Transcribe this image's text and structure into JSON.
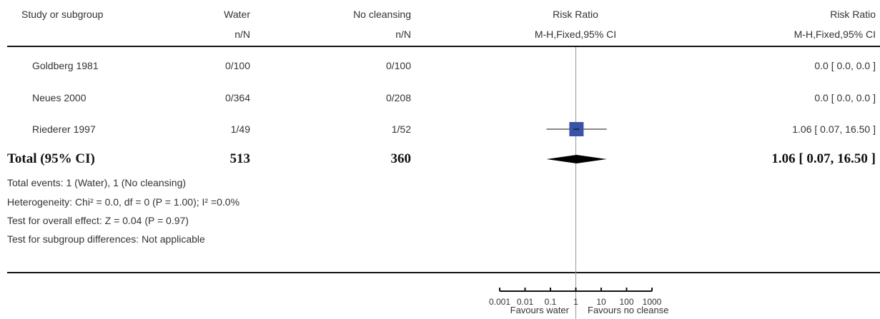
{
  "header": {
    "col1": "Study or subgroup",
    "col2": "Water",
    "col2_sub": "n/N",
    "col3": "No cleansing",
    "col3_sub": "n/N",
    "col4": "Risk Ratio",
    "col4_sub": "M-H,Fixed,95% CI",
    "col5": "Risk Ratio",
    "col5_sub": "M-H,Fixed,95% CI"
  },
  "studies": [
    {
      "name": "Goldberg 1981",
      "water": "0/100",
      "no_cleansing": "0/100",
      "rr_text": "0.0 [ 0.0, 0.0 ]"
    },
    {
      "name": "Neues 2000",
      "water": "0/364",
      "no_cleansing": "0/208",
      "rr_text": "0.0 [ 0.0, 0.0 ]"
    },
    {
      "name": "Riederer 1997",
      "water": "1/49",
      "no_cleansing": "1/52",
      "rr_text": "1.06 [ 0.07, 16.50 ]"
    }
  ],
  "total": {
    "label": "Total (95% CI)",
    "water": "513",
    "no_cleansing": "360",
    "rr_text": "1.06 [ 0.07, 16.50 ]"
  },
  "footnotes": {
    "events": "Total events: 1 (Water), 1 (No cleansing)",
    "heterogeneity": "Heterogeneity: Chi² = 0.0, df = 0 (P = 1.00); I² =0.0%",
    "overall": "Test for overall effect: Z = 0.04 (P = 0.97)",
    "subgroup": "Test for subgroup differences: Not applicable"
  },
  "axis": {
    "favours_left": "Favours water",
    "favours_right": "Favours no cleanse"
  },
  "colors": {
    "marker": "#3a52a8",
    "diamond": "#000000",
    "lines": "#111111"
  },
  "chart_data": {
    "type": "forest",
    "scale": "log",
    "xlim": [
      0.001,
      1000
    ],
    "null_value": 1,
    "ticks": [
      {
        "value": 0.001,
        "label": "0.001"
      },
      {
        "value": 0.01,
        "label": "0.01"
      },
      {
        "value": 0.1,
        "label": "0.1"
      },
      {
        "value": 1,
        "label": "1"
      },
      {
        "value": 10,
        "label": "10"
      },
      {
        "value": 100,
        "label": "100"
      },
      {
        "value": 1000,
        "label": "1000"
      }
    ],
    "points": [
      {
        "study": "Riederer 1997",
        "rr": 1.06,
        "lo": 0.07,
        "hi": 16.5
      }
    ],
    "pooled": {
      "rr": 1.06,
      "lo": 0.07,
      "hi": 16.5
    }
  }
}
